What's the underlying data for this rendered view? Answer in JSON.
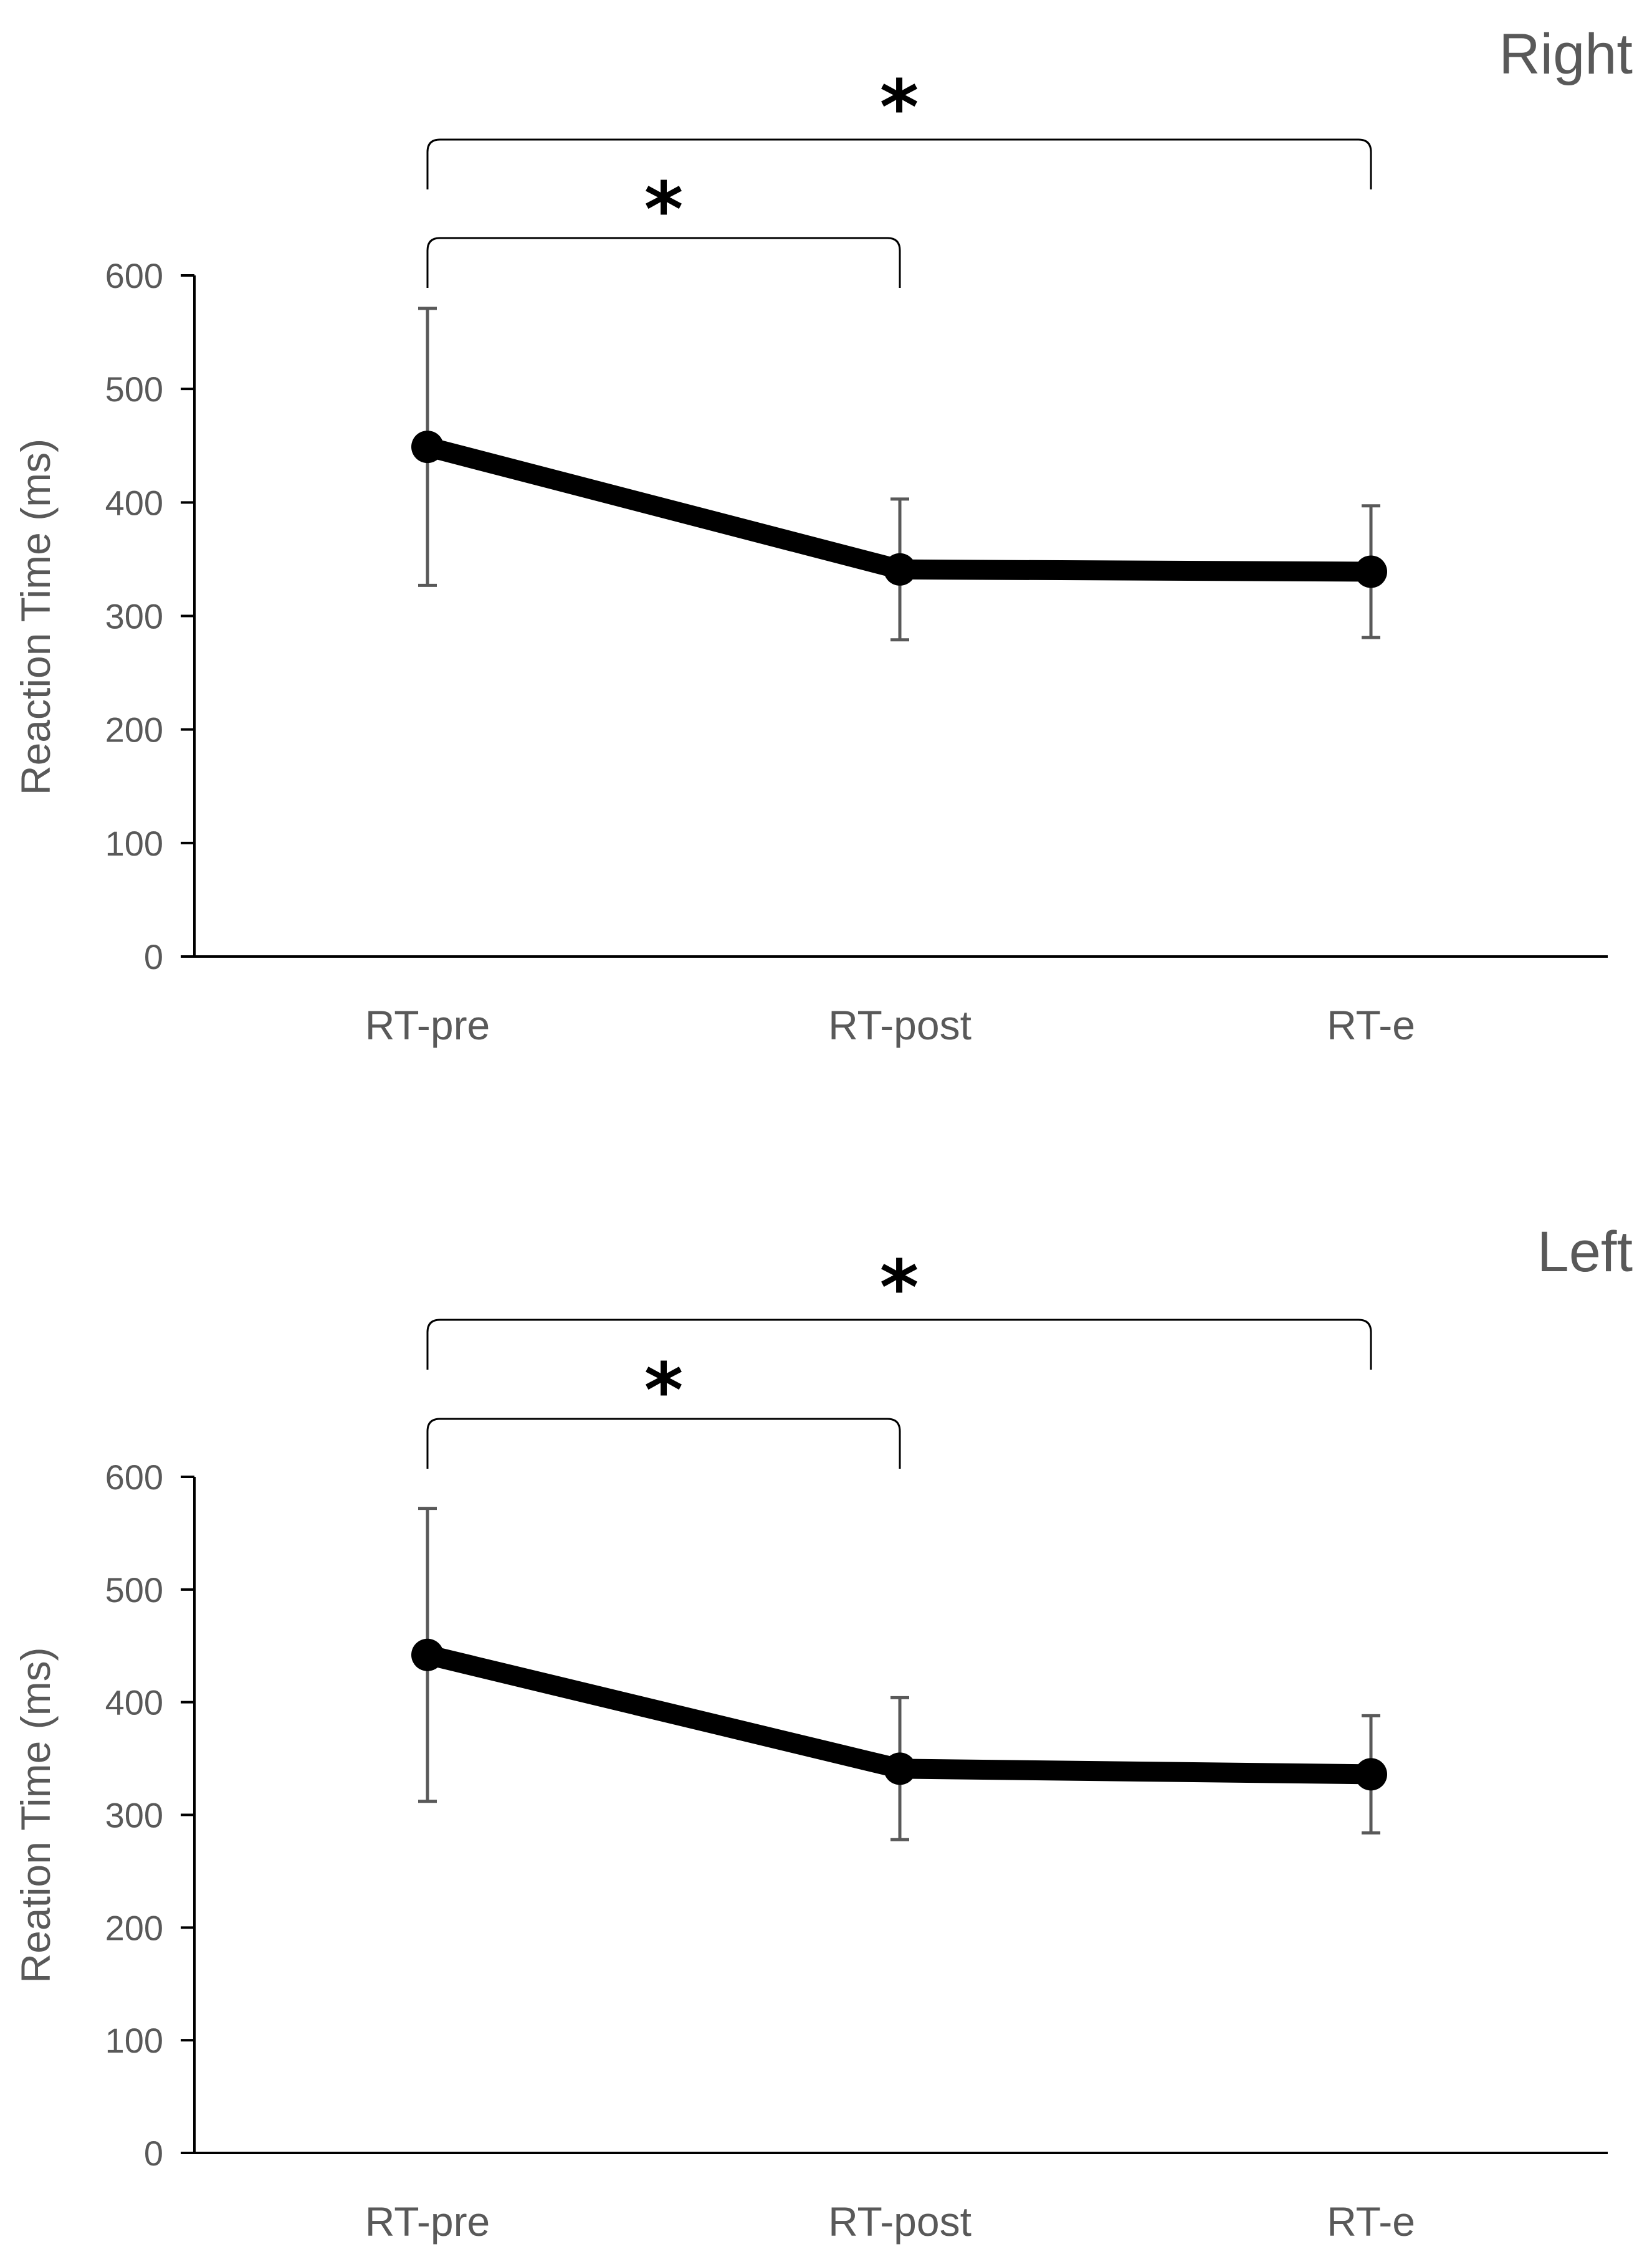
{
  "chart_data": [
    {
      "type": "line",
      "title": "Right",
      "xlabel": "",
      "ylabel": "Reaction Time (ms)",
      "categories": [
        "RT-pre",
        "RT-post",
        "RT-e"
      ],
      "series": [
        {
          "name": "Right",
          "values": [
            449,
            341,
            339
          ],
          "error": [
            122,
            62,
            58
          ]
        }
      ],
      "ylim": [
        0,
        600
      ],
      "yticks": [
        0,
        100,
        200,
        300,
        400,
        500,
        600
      ],
      "grid": false,
      "significance": [
        {
          "from": "RT-pre",
          "to": "RT-post",
          "label": "*"
        },
        {
          "from": "RT-pre",
          "to": "RT-e",
          "label": "*"
        }
      ],
      "colors": {
        "line": "#000000",
        "axis": "#000000",
        "text": "#595959",
        "error": "#595959"
      }
    },
    {
      "type": "line",
      "title": "Left",
      "xlabel": "",
      "ylabel": "Reation Time (ms)",
      "categories": [
        "RT-pre",
        "RT-post",
        "RT-e"
      ],
      "series": [
        {
          "name": "Left",
          "values": [
            442,
            341,
            336
          ],
          "error": [
            130,
            63,
            52
          ]
        }
      ],
      "ylim": [
        0,
        600
      ],
      "yticks": [
        0,
        100,
        200,
        300,
        400,
        500,
        600
      ],
      "grid": false,
      "significance": [
        {
          "from": "RT-pre",
          "to": "RT-post",
          "label": "*"
        },
        {
          "from": "RT-pre",
          "to": "RT-e",
          "label": "*"
        }
      ],
      "colors": {
        "line": "#000000",
        "axis": "#000000",
        "text": "#595959",
        "error": "#595959"
      }
    }
  ]
}
